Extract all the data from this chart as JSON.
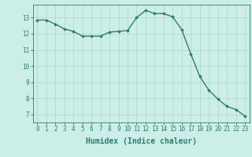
{
  "x": [
    0,
    1,
    2,
    3,
    4,
    5,
    6,
    7,
    8,
    9,
    10,
    11,
    12,
    13,
    14,
    15,
    16,
    17,
    18,
    19,
    20,
    21,
    22,
    23
  ],
  "y": [
    12.85,
    12.85,
    12.6,
    12.3,
    12.15,
    11.85,
    11.85,
    11.85,
    12.1,
    12.15,
    12.2,
    13.0,
    13.45,
    13.25,
    13.25,
    13.05,
    12.25,
    10.75,
    9.35,
    8.5,
    7.95,
    7.5,
    7.3,
    6.9
  ],
  "line_color": "#2e7d6e",
  "marker": "D",
  "marker_size": 1.8,
  "bg_color": "#cceee8",
  "grid_color": "#b0d4cc",
  "xlabel": "Humidex (Indice chaleur)",
  "xlim": [
    -0.5,
    23.5
  ],
  "ylim": [
    6.5,
    13.8
  ],
  "yticks": [
    7,
    8,
    9,
    10,
    11,
    12,
    13
  ],
  "xticks": [
    0,
    1,
    2,
    3,
    4,
    5,
    6,
    7,
    8,
    9,
    10,
    11,
    12,
    13,
    14,
    15,
    16,
    17,
    18,
    19,
    20,
    21,
    22,
    23
  ],
  "tick_fontsize": 5.5,
  "xlabel_fontsize": 7.0,
  "line_width": 1.0
}
